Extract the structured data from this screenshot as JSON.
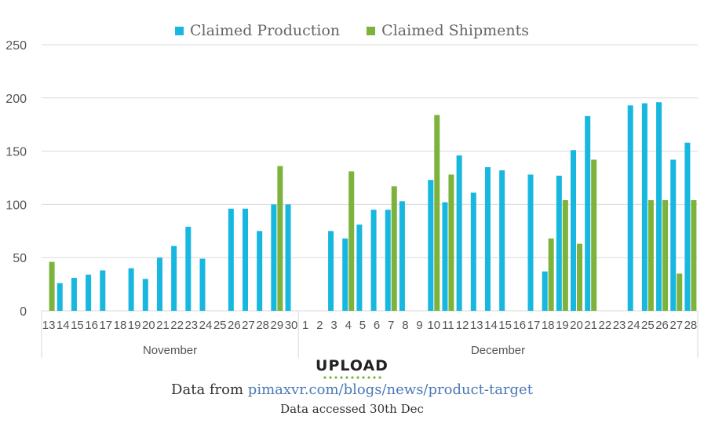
{
  "legend": {
    "production_label": "Claimed Production",
    "shipments_label": "Claimed Shipments"
  },
  "colors": {
    "production": "#18B7E0",
    "shipments": "#7DB33C",
    "grid": "#d9d9d9",
    "axis_text": "#555555"
  },
  "logo": {
    "text": "UPLOAD",
    "icon": "upload-logo-icon"
  },
  "footer": {
    "prefix": "Data from ",
    "link_text": "pimaxvr.com/blogs/news/product-target",
    "accessed": "Data accessed 30th Dec"
  },
  "chart_data": {
    "type": "bar",
    "ylim": [
      0,
      250
    ],
    "yticks": [
      0,
      50,
      100,
      150,
      200,
      250
    ],
    "grid": true,
    "legend_position": "top-center",
    "groups": [
      {
        "label": "November",
        "count": 18
      },
      {
        "label": "December",
        "count": 28
      }
    ],
    "categories": [
      "13",
      "14",
      "15",
      "16",
      "17",
      "18",
      "19",
      "20",
      "21",
      "22",
      "23",
      "24",
      "25",
      "26",
      "27",
      "28",
      "29",
      "30",
      "1",
      "2",
      "3",
      "4",
      "5",
      "6",
      "7",
      "8",
      "9",
      "10",
      "11",
      "12",
      "13",
      "14",
      "15",
      "16",
      "17",
      "18",
      "19",
      "20",
      "21",
      "22",
      "23",
      "24",
      "25",
      "26",
      "27",
      "28"
    ],
    "series": [
      {
        "name": "Claimed Production",
        "values": [
          0,
          26,
          31,
          34,
          38,
          0,
          40,
          30,
          50,
          61,
          79,
          49,
          0,
          96,
          96,
          75,
          100,
          100,
          0,
          0,
          75,
          68,
          81,
          95,
          95,
          103,
          0,
          123,
          102,
          146,
          111,
          135,
          132,
          0,
          128,
          37,
          127,
          151,
          183,
          0,
          0,
          193,
          195,
          196,
          142,
          158
        ]
      },
      {
        "name": "Claimed Shipments",
        "values": [
          46,
          0,
          0,
          0,
          0,
          0,
          0,
          0,
          0,
          0,
          0,
          0,
          0,
          0,
          0,
          0,
          136,
          0,
          0,
          0,
          0,
          131,
          0,
          0,
          117,
          0,
          0,
          184,
          128,
          0,
          0,
          0,
          0,
          0,
          0,
          68,
          104,
          63,
          142,
          0,
          0,
          0,
          104,
          104,
          35,
          104
        ]
      }
    ]
  }
}
